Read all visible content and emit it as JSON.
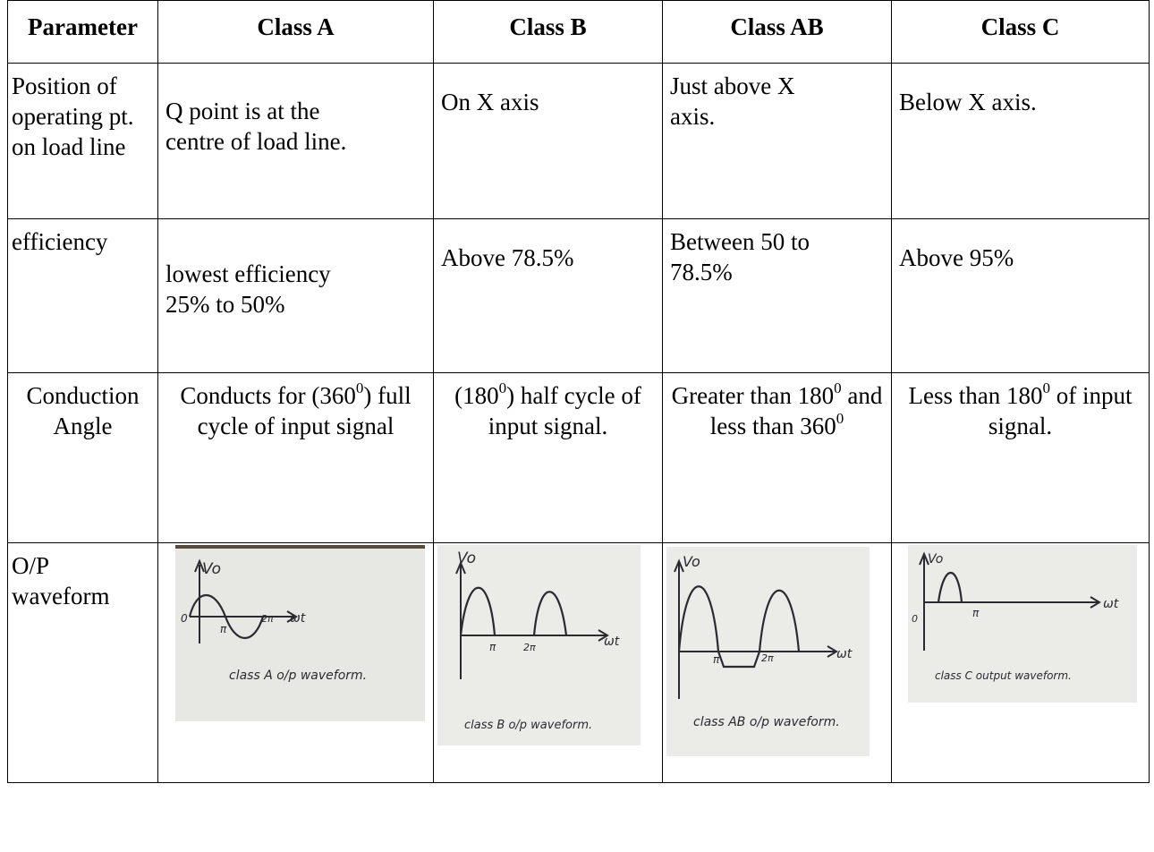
{
  "headers": [
    "Parameter",
    "Class A",
    "Class B",
    "Class AB",
    "Class C"
  ],
  "rows": [
    {
      "param": "Position of operating pt. on load line",
      "a": "Q point is at the centre of load line.",
      "b": "On X axis",
      "ab": "Just above X axis.",
      "c": "Below X axis."
    },
    {
      "param": "efficiency",
      "a": "lowest efficiency 25% to 50%",
      "b": "Above 78.5%",
      "ab": "Between 50 to 78.5%",
      "c": "Above 95%"
    }
  ],
  "conduction": {
    "param": "Conduction Angle",
    "a": {
      "pre": "Conducts for (360",
      "sup": "0",
      "post": ") full cycle of input signal"
    },
    "b": {
      "pre": "(180",
      "sup": "0",
      "post": ") half cycle of input signal."
    },
    "ab": {
      "pre": "Greater than 180",
      "sup": "0",
      "mid": " and less than 360",
      "sup2": "0"
    },
    "c": {
      "pre": "Less than 180",
      "sup": "0",
      "post": " of input signal."
    }
  },
  "waveform": {
    "param": "O/P waveform",
    "a": {
      "axis_v": "Vo",
      "origin": "0",
      "tick1": "π",
      "tick2": "2π",
      "axis_t": "ωt",
      "caption": "class A o/p waveform."
    },
    "b": {
      "axis_v": "Vo",
      "tick1": "π",
      "tick2": "2π",
      "axis_t": "ωt",
      "caption": "class B o/p waveform."
    },
    "ab": {
      "axis_v": "Vo",
      "tick1": "π",
      "tick2": "2π",
      "axis_t": "ωt",
      "caption": "class AB o/p waveform."
    },
    "c": {
      "axis_v": "Vo",
      "origin": "0",
      "tick1": "π",
      "axis_t": "ωt",
      "caption": "class C output waveform."
    }
  }
}
